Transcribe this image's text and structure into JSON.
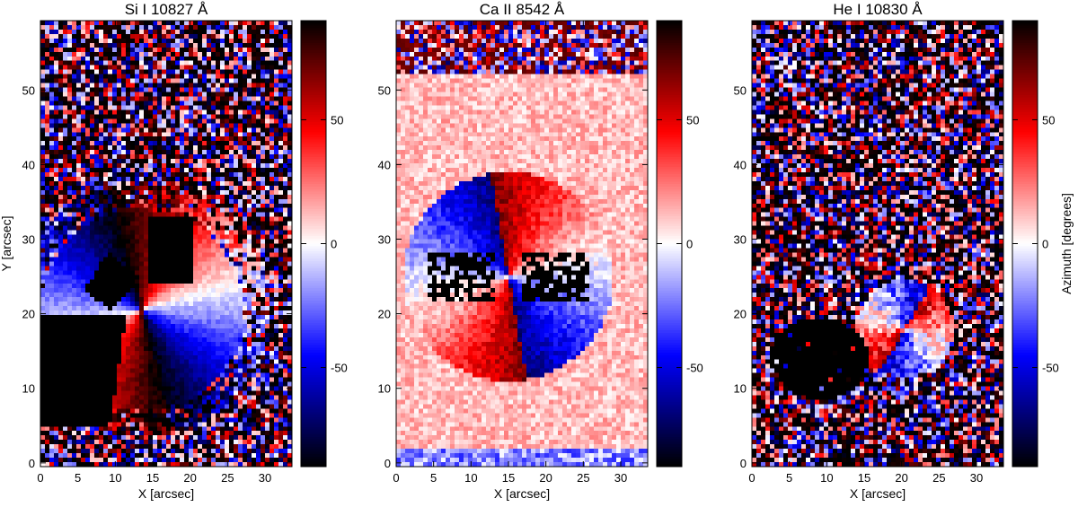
{
  "figure": {
    "colorbar_axis_label": "Azimuth [degrees]"
  },
  "chart_data": [
    {
      "type": "heatmap",
      "title": "Si I 10827 Å",
      "xlabel": "X [arcsec]",
      "ylabel": "Y [arcsec]",
      "xlim": [
        0,
        33.6
      ],
      "ylim": [
        -0.5,
        59.3
      ],
      "xticks": [
        0,
        5,
        10,
        15,
        20,
        25,
        30
      ],
      "xtick_labels": [
        "0",
        "5",
        "10",
        "15",
        "20",
        "25",
        "30"
      ],
      "yticks": [
        0,
        10,
        20,
        30,
        40,
        50
      ],
      "ytick_labels": [
        "0",
        "10",
        "20",
        "30",
        "40",
        "50"
      ],
      "colorbar": {
        "range": [
          -90,
          90
        ],
        "ticks": [
          -50,
          0,
          50
        ],
        "tick_labels": [
          "-50",
          "0",
          "50"
        ],
        "colormap": [
          "#000000",
          "#0000ff",
          "#ffffff",
          "#ff0000",
          "#000000"
        ]
      }
    },
    {
      "type": "heatmap",
      "title": "Ca II 8542 Å",
      "xlabel": "X [arcsec]",
      "ylabel": "",
      "xlim": [
        0,
        33.6
      ],
      "ylim": [
        -0.5,
        59.3
      ],
      "xticks": [
        0,
        5,
        10,
        15,
        20,
        25,
        30
      ],
      "xtick_labels": [
        "0",
        "5",
        "10",
        "15",
        "20",
        "25",
        "30"
      ],
      "yticks": [
        0,
        10,
        20,
        30,
        40,
        50
      ],
      "ytick_labels": [
        "0",
        "10",
        "20",
        "30",
        "40",
        "50"
      ],
      "colorbar": {
        "range": [
          -90,
          90
        ],
        "ticks": [
          -50,
          0,
          50
        ],
        "tick_labels": [
          "-50",
          "0",
          "50"
        ],
        "colormap": [
          "#000000",
          "#0000ff",
          "#ffffff",
          "#ff0000",
          "#000000"
        ]
      }
    },
    {
      "type": "heatmap",
      "title": "He I 10830 Å",
      "xlabel": "X [arcsec]",
      "ylabel": "",
      "xlim": [
        0,
        33.6
      ],
      "ylim": [
        -0.5,
        59.3
      ],
      "xticks": [
        0,
        5,
        10,
        15,
        20,
        25,
        30
      ],
      "xtick_labels": [
        "0",
        "5",
        "10",
        "15",
        "20",
        "25",
        "30"
      ],
      "yticks": [
        0,
        10,
        20,
        30,
        40,
        50
      ],
      "ytick_labels": [
        "0",
        "10",
        "20",
        "30",
        "40",
        "50"
      ],
      "colorbar": {
        "range": [
          -90,
          90
        ],
        "ticks": [
          -50,
          0,
          50
        ],
        "tick_labels": [
          "-50",
          "0",
          "50"
        ],
        "colormap": [
          "#000000",
          "#0000ff",
          "#ffffff",
          "#ff0000",
          "#000000"
        ]
      }
    }
  ]
}
